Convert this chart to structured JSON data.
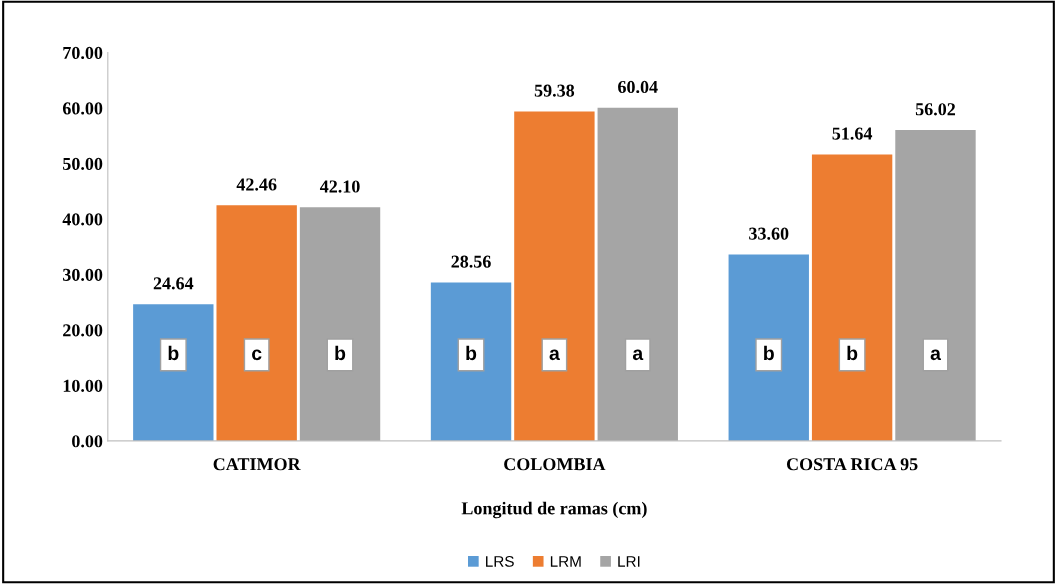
{
  "chart_data": {
    "type": "bar",
    "xlabel": "Longitud de ramas (cm)",
    "categories": [
      "CATIMOR",
      "COLOMBIA",
      "COSTA RICA 95"
    ],
    "series": [
      {
        "name": "LRS",
        "color": "#5b9bd5",
        "values": [
          24.64,
          28.56,
          33.6
        ]
      },
      {
        "name": "LRM",
        "color": "#ed7d31",
        "values": [
          42.46,
          59.38,
          51.64
        ]
      },
      {
        "name": "LRI",
        "color": "#a5a5a5",
        "values": [
          42.1,
          60.04,
          56.02
        ]
      }
    ],
    "ylim": [
      0,
      70
    ],
    "yticks": [
      {
        "value": 0,
        "label": "0.00"
      },
      {
        "value": 10,
        "label": "10.00"
      },
      {
        "value": 20,
        "label": "20.00"
      },
      {
        "value": 30,
        "label": "30.00"
      },
      {
        "value": 40,
        "label": "40.00"
      },
      {
        "value": 50,
        "label": "50.00"
      },
      {
        "value": 60,
        "label": "60.00"
      },
      {
        "value": 70,
        "label": "70.00"
      }
    ],
    "value_labels": [
      [
        "24.64",
        "28.56",
        "33.60"
      ],
      [
        "42.46",
        "59.38",
        "51.64"
      ],
      [
        "42.10",
        "60.04",
        "56.02"
      ]
    ],
    "annotations": [
      "b",
      "b",
      "b",
      "c",
      "a",
      "b",
      "b",
      "a",
      "a"
    ],
    "grid": false,
    "legend": "bottom"
  }
}
